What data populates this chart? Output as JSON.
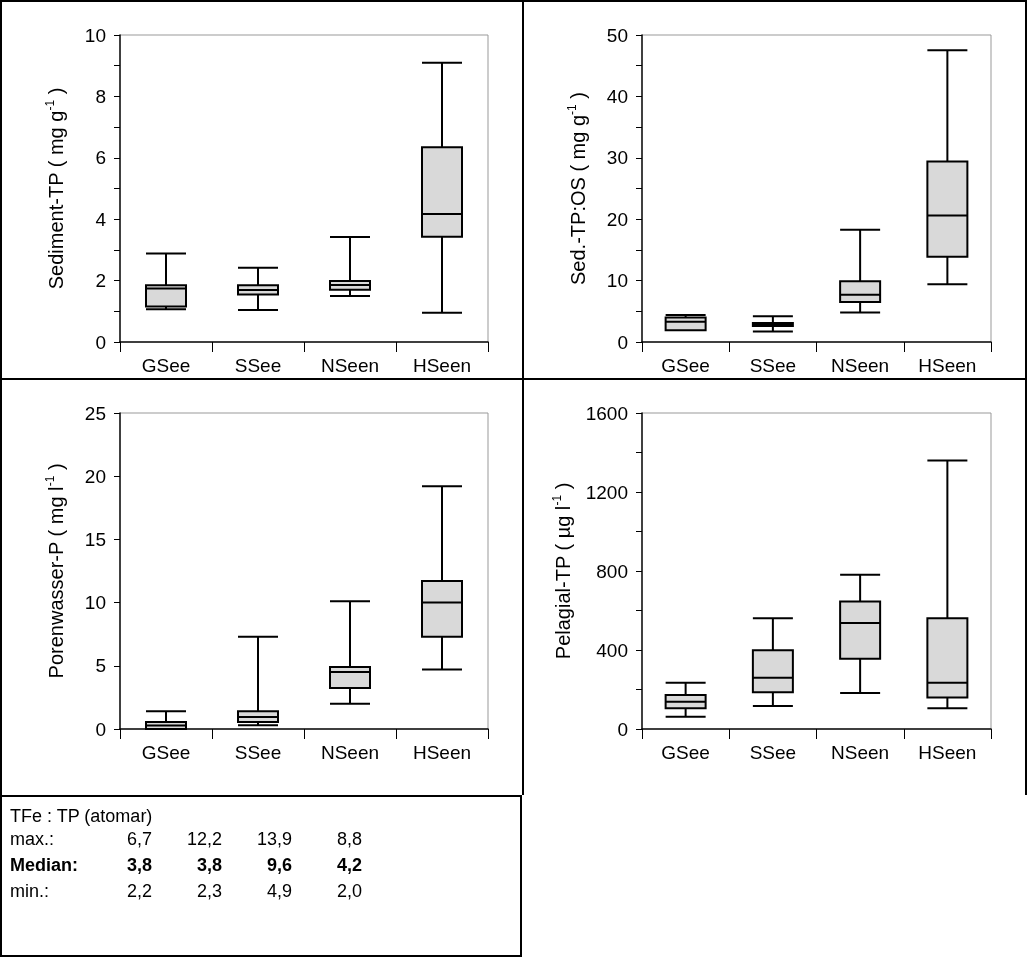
{
  "chart_data": [
    {
      "type": "box",
      "ylabel": "Sediment-TP ( mg g$^{-1}$ )",
      "categories": [
        "GSee",
        "SSee",
        "NSeen",
        "HSeen"
      ],
      "ylim": [
        0,
        10
      ],
      "yticks": [
        0,
        {
          "value": 1,
          "label": null
        },
        2,
        {
          "value": 3,
          "label": null
        },
        4,
        {
          "value": 5,
          "label": null
        },
        6,
        {
          "value": 7,
          "label": null
        },
        8,
        {
          "value": 9,
          "label": null
        },
        10
      ],
      "grid": false,
      "series": [
        {
          "color": "#d9d9d9",
          "boxes": [
            {
              "low": 1.07,
              "q1": 1.16,
              "median": 1.74,
              "q3": 1.85,
              "high": 2.88
            },
            {
              "low": 1.04,
              "q1": 1.55,
              "median": 1.69,
              "q3": 1.85,
              "high": 2.42
            },
            {
              "low": 1.5,
              "q1": 1.7,
              "median": 1.86,
              "q3": 1.99,
              "high": 3.42
            },
            {
              "low": 0.95,
              "q1": 3.43,
              "median": 4.17,
              "q3": 6.34,
              "high": 9.1
            }
          ]
        }
      ]
    },
    {
      "type": "box",
      "ylabel": "Sed.-TP:OS ( mg g$^{-1}$ )",
      "categories": [
        "GSee",
        "SSee",
        "NSeen",
        "HSeen"
      ],
      "ylim": [
        0,
        50
      ],
      "yticks": [
        0,
        {
          "value": 5,
          "label": null
        },
        10,
        {
          "value": 15,
          "label": null
        },
        20,
        {
          "value": 25,
          "label": null
        },
        30,
        {
          "value": 35,
          "label": null
        },
        40,
        {
          "value": 45,
          "label": null
        },
        50
      ],
      "grid": false,
      "series": [
        {
          "color": "#d9d9d9",
          "boxes": [
            {
              "low": 1.9,
              "q1": 1.9,
              "median": 3.3,
              "q3": 4.0,
              "high": 4.4
            },
            {
              "low": 1.7,
              "q1": 2.6,
              "median": 2.8,
              "q3": 3.1,
              "high": 4.2
            },
            {
              "low": 4.8,
              "q1": 6.5,
              "median": 7.7,
              "q3": 9.9,
              "high": 18.3
            },
            {
              "low": 9.4,
              "q1": 13.9,
              "median": 20.6,
              "q3": 29.4,
              "high": 47.5
            }
          ]
        }
      ]
    },
    {
      "type": "box",
      "ylabel": "Porenwasser-P ( mg l$^{-1}$ )",
      "categories": [
        "GSee",
        "SSee",
        "NSeen",
        "HSeen"
      ],
      "ylim": [
        0,
        25
      ],
      "yticks": [
        0,
        5,
        10,
        15,
        20,
        25
      ],
      "grid": false,
      "series": [
        {
          "color": "#d9d9d9",
          "boxes": [
            {
              "low": 0,
              "q1": 0,
              "median": 0.27,
              "q3": 0.56,
              "high": 1.4
            },
            {
              "low": 0.3,
              "q1": 0.56,
              "median": 0.94,
              "q3": 1.4,
              "high": 7.3
            },
            {
              "low": 2.0,
              "q1": 3.25,
              "median": 4.5,
              "q3": 4.9,
              "high": 10.1
            },
            {
              "low": 4.7,
              "q1": 7.3,
              "median": 10.0,
              "q3": 11.7,
              "high": 19.2
            }
          ]
        }
      ]
    },
    {
      "type": "box",
      "ylabel": "Pelagial-TP ( µg l$^{-1}$ )",
      "categories": [
        "GSee",
        "SSee",
        "NSeen",
        "HSeen"
      ],
      "ylim": [
        0,
        1600
      ],
      "yticks": [
        0,
        {
          "value": 200,
          "label": null
        },
        400,
        {
          "value": 600,
          "label": null
        },
        800,
        {
          "value": 1000,
          "label": null
        },
        1200,
        {
          "value": 1400,
          "label": null
        },
        1600
      ],
      "grid": false,
      "series": [
        {
          "color": "#d9d9d9",
          "boxes": [
            {
              "low": 62,
              "q1": 105,
              "median": 138,
              "q3": 172,
              "high": 234
            },
            {
              "low": 117,
              "q1": 186,
              "median": 260,
              "q3": 399,
              "high": 561
            },
            {
              "low": 182,
              "q1": 356,
              "median": 537,
              "q3": 645,
              "high": 781
            },
            {
              "low": 105,
              "q1": 160,
              "median": 234,
              "q3": 561,
              "high": 1359
            }
          ]
        }
      ]
    },
    {
      "type": "other",
      "title": "TFe : TP (atomar)",
      "annotations": [
        "max.:",
        "6,7",
        "12,2",
        "13,9",
        "8,8",
        "Median:",
        "3,8",
        "3,8",
        "9,6",
        "4,2",
        "min.:",
        "2,2",
        "2,3",
        "4,9",
        "2,0"
      ]
    }
  ]
}
